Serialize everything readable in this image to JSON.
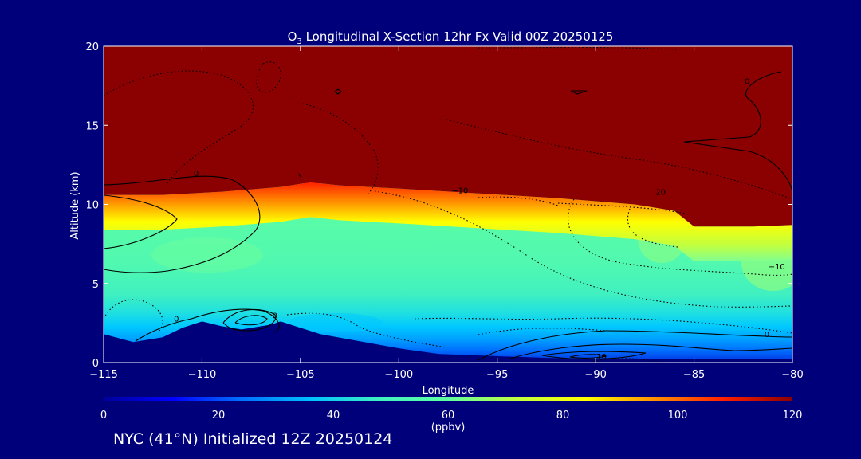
{
  "colors": {
    "background": "#00007a",
    "stratosphere": "#8b0000",
    "text": "#ffffff",
    "colorbar_stops": [
      "#00009a",
      "#0000ff",
      "#0070ff",
      "#00c0ff",
      "#40f0c0",
      "#60ffa0",
      "#c0ff40",
      "#ffff00",
      "#ff9000",
      "#ff2000",
      "#8b0000"
    ]
  },
  "chart_data": {
    "type": "heatmap",
    "title": "O3 Longitudinal X-Section 12hr  Fx Valid 00Z 20250125",
    "title_parts": {
      "prefix": "O",
      "subscript": "3",
      "rest": " Longitudinal X-Section 12hr  Fx Valid 00Z 20250125"
    },
    "xlabel": "Longitude",
    "ylabel": "Altitude (km)",
    "xlim": [
      -115,
      -80
    ],
    "ylim": [
      0,
      20
    ],
    "x_ticks": [
      -115,
      -110,
      -105,
      -100,
      -95,
      -90,
      -85,
      -80
    ],
    "x_tick_labels": [
      "−115",
      "−110",
      "−105",
      "−100",
      "−95",
      "−90",
      "−85",
      "−80"
    ],
    "y_ticks": [
      0,
      5,
      10,
      15,
      20
    ],
    "y_tick_labels": [
      "0",
      "5",
      "10",
      "15",
      "20"
    ],
    "colorbar": {
      "range": [
        0,
        120
      ],
      "ticks": [
        0,
        20,
        40,
        60,
        80,
        100,
        120
      ],
      "tick_labels": [
        "0",
        "20",
        "40",
        "60",
        "80",
        "100",
        "120"
      ],
      "units": "(ppbv)"
    },
    "tropopause_height_km": [
      [
        -115,
        10.6
      ],
      [
        -112,
        10.6
      ],
      [
        -109,
        10.8
      ],
      [
        -107,
        11.0
      ],
      [
        -106,
        11.1
      ],
      [
        -104.5,
        11.4
      ],
      [
        -103,
        11.2
      ],
      [
        -100,
        11.0
      ],
      [
        -96,
        10.7
      ],
      [
        -92,
        10.4
      ],
      [
        -88,
        10.0
      ],
      [
        -86,
        9.6
      ],
      [
        -85,
        8.6
      ],
      [
        -82,
        8.6
      ],
      [
        -80,
        8.7
      ]
    ],
    "terrain_height_km": [
      [
        -115,
        1.8
      ],
      [
        -113.5,
        1.3
      ],
      [
        -112,
        1.6
      ],
      [
        -111,
        2.2
      ],
      [
        -110,
        2.6
      ],
      [
        -109,
        2.3
      ],
      [
        -108,
        2.1
      ],
      [
        -106.5,
        2.4
      ],
      [
        -106,
        2.6
      ],
      [
        -105.5,
        2.4
      ],
      [
        -104,
        1.8
      ],
      [
        -100,
        0.9
      ],
      [
        -98,
        0.55
      ],
      [
        -95,
        0.4
      ],
      [
        -90,
        0.2
      ],
      [
        -80,
        0.2
      ]
    ],
    "contour_labels": [
      {
        "x": -110.3,
        "y": 11.8,
        "text": "0"
      },
      {
        "x": -111.3,
        "y": 2.6,
        "text": "0"
      },
      {
        "x": -106.3,
        "y": 2.8,
        "text": "0"
      },
      {
        "x": -96.9,
        "y": 10.7,
        "text": "−10"
      },
      {
        "x": -86.7,
        "y": 10.6,
        "text": "20"
      },
      {
        "x": -80.8,
        "y": 5.9,
        "text": "−10"
      },
      {
        "x": -81.3,
        "y": 1.6,
        "text": "0"
      },
      {
        "x": -89.7,
        "y": 0.2,
        "text": "10"
      },
      {
        "x": -82.3,
        "y": 17.6,
        "text": "0"
      }
    ]
  },
  "footer": {
    "label": "NYC (41°N) Initialized 12Z 20250124"
  }
}
